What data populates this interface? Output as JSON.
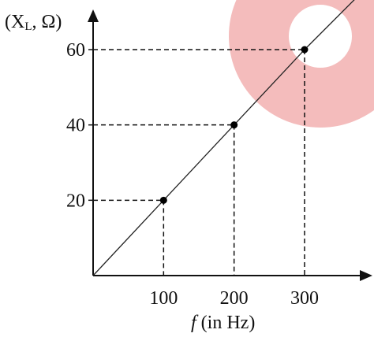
{
  "chart_data": {
    "type": "line",
    "title": "",
    "ylabel": "(X",
    "ylabel_sub": "L",
    "ylabel_rest": ", Ω)",
    "xlabel_var": "f",
    "xlabel_rest": " (in Hz)",
    "x_ticks": [
      "100",
      "200",
      "300"
    ],
    "y_ticks": [
      "20",
      "40",
      "60"
    ],
    "xlim": [
      0,
      440
    ],
    "ylim": [
      0,
      78
    ],
    "series": [
      {
        "x": [
          0,
          100,
          200,
          300,
          380
        ],
        "y": [
          0,
          20,
          40,
          60,
          75
        ]
      }
    ],
    "highlighted_points": [
      {
        "x": 100,
        "y": 20
      },
      {
        "x": 200,
        "y": 40
      },
      {
        "x": 300,
        "y": 60
      }
    ],
    "grid": false,
    "decoration_color": "#f4bcbc",
    "line_color": "#222222"
  }
}
